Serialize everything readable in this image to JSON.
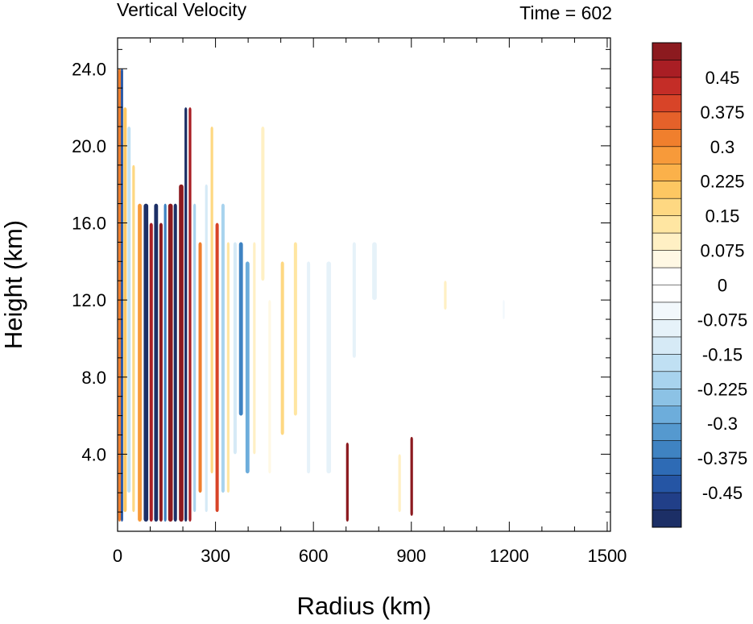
{
  "chart_data": {
    "type": "heatmap",
    "title": "Vertical Velocity",
    "subtitle": "Time = 602",
    "xlabel": "Radius (km)",
    "ylabel": "Height (km)",
    "xlim": [
      0,
      1510
    ],
    "ylim": [
      0,
      25.6
    ],
    "xticks": [
      {
        "value": 0,
        "label": "0"
      },
      {
        "value": 300,
        "label": "300"
      },
      {
        "value": 600,
        "label": "600"
      },
      {
        "value": 900,
        "label": "900"
      },
      {
        "value": 1200,
        "label": "1200"
      },
      {
        "value": 1500,
        "label": "1500"
      }
    ],
    "yticks": [
      {
        "value": 4,
        "label": "4.0"
      },
      {
        "value": 8,
        "label": "8.0"
      },
      {
        "value": 12,
        "label": "12.0"
      },
      {
        "value": 16,
        "label": "16.0"
      },
      {
        "value": 20,
        "label": "20.0"
      },
      {
        "value": 24,
        "label": "24.0"
      }
    ],
    "colorbar": {
      "min": -0.525,
      "max": 0.525,
      "step": 0.0375,
      "labels": [
        {
          "value": 0.45,
          "label": "0.45"
        },
        {
          "value": 0.375,
          "label": "0.375"
        },
        {
          "value": 0.3,
          "label": "0.3"
        },
        {
          "value": 0.225,
          "label": "0.225"
        },
        {
          "value": 0.15,
          "label": "0.15"
        },
        {
          "value": 0.075,
          "label": "0.075"
        },
        {
          "value": 0,
          "label": "0"
        },
        {
          "value": -0.075,
          "label": "-0.075"
        },
        {
          "value": -0.15,
          "label": "-0.15"
        },
        {
          "value": -0.225,
          "label": "-0.225"
        },
        {
          "value": -0.3,
          "label": "-0.3"
        },
        {
          "value": -0.375,
          "label": "-0.375"
        },
        {
          "value": -0.45,
          "label": "-0.45"
        }
      ],
      "colors": [
        "#1c2f66",
        "#213f88",
        "#2555a4",
        "#2e6bb5",
        "#3f83c2",
        "#5599cf",
        "#6daddb",
        "#8cc2e5",
        "#a8d3ee",
        "#c0e0f3",
        "#d6eaf6",
        "#e6f2f9",
        "#f2f8fc",
        "#ffffff",
        "#ffffff",
        "#fff8e4",
        "#fff0c4",
        "#ffe6a2",
        "#fed882",
        "#fdc762",
        "#fbb14a",
        "#f79a3a",
        "#f07f2d",
        "#e5612a",
        "#d84428",
        "#c42d27",
        "#a91e24",
        "#8c1a1f"
      ]
    },
    "bands": [
      {
        "x": 2,
        "w": 8,
        "z0": 0.5,
        "z1": 24,
        "v": 0.32
      },
      {
        "x": 10,
        "w": 7,
        "z0": 0.5,
        "z1": 24,
        "v": -0.42
      },
      {
        "x": 18,
        "w": 10,
        "z0": 1,
        "z1": 22,
        "v": 0.22
      },
      {
        "x": 30,
        "w": 10,
        "z0": 2,
        "z1": 21,
        "v": -0.18
      },
      {
        "x": 45,
        "w": 8,
        "z0": 1,
        "z1": 19,
        "v": 0.15
      },
      {
        "x": 62,
        "w": 12,
        "z0": 0.5,
        "z1": 17,
        "v": 0.28
      },
      {
        "x": 80,
        "w": 14,
        "z0": 0.5,
        "z1": 17,
        "v": -0.5
      },
      {
        "x": 98,
        "w": 10,
        "z0": 0.5,
        "z1": 16,
        "v": 0.48
      },
      {
        "x": 112,
        "w": 12,
        "z0": 0.5,
        "z1": 17,
        "v": -0.5
      },
      {
        "x": 128,
        "w": 10,
        "z0": 0.5,
        "z1": 16,
        "v": 0.5
      },
      {
        "x": 142,
        "w": 8,
        "z0": 0.5,
        "z1": 17,
        "v": -0.35
      },
      {
        "x": 155,
        "w": 14,
        "z0": 0.5,
        "z1": 17,
        "v": 0.52
      },
      {
        "x": 172,
        "w": 10,
        "z0": 0.5,
        "z1": 17,
        "v": -0.52
      },
      {
        "x": 188,
        "w": 14,
        "z0": 0.5,
        "z1": 18,
        "v": 0.5
      },
      {
        "x": 205,
        "w": 8,
        "z0": 0.5,
        "z1": 22,
        "v": -0.5
      },
      {
        "x": 218,
        "w": 8,
        "z0": 0.5,
        "z1": 22,
        "v": 0.45
      },
      {
        "x": 232,
        "w": 8,
        "z0": 1,
        "z1": 17,
        "v": -0.2
      },
      {
        "x": 248,
        "w": 10,
        "z0": 2,
        "z1": 15,
        "v": 0.3
      },
      {
        "x": 268,
        "w": 8,
        "z0": 1,
        "z1": 18,
        "v": -0.15
      },
      {
        "x": 285,
        "w": 8,
        "z0": 3,
        "z1": 21,
        "v": 0.18
      },
      {
        "x": 300,
        "w": 10,
        "z0": 1,
        "z1": 16,
        "v": 0.38
      },
      {
        "x": 318,
        "w": 10,
        "z0": 2,
        "z1": 17,
        "v": -0.22
      },
      {
        "x": 335,
        "w": 8,
        "z0": 2,
        "z1": 15,
        "v": 0.14
      },
      {
        "x": 355,
        "w": 10,
        "z0": 4,
        "z1": 15,
        "v": -0.12
      },
      {
        "x": 372,
        "w": 12,
        "z0": 6,
        "z1": 15,
        "v": -0.34
      },
      {
        "x": 392,
        "w": 12,
        "z0": 3,
        "z1": 14,
        "v": -0.3
      },
      {
        "x": 415,
        "w": 8,
        "z0": 4,
        "z1": 15,
        "v": 0.1
      },
      {
        "x": 440,
        "w": 10,
        "z0": 13,
        "z1": 21,
        "v": 0.1
      },
      {
        "x": 462,
        "w": 8,
        "z0": 3,
        "z1": 12,
        "v": 0.06
      },
      {
        "x": 500,
        "w": 10,
        "z0": 5,
        "z1": 14,
        "v": 0.16
      },
      {
        "x": 540,
        "w": 10,
        "z0": 6,
        "z1": 15,
        "v": 0.12
      },
      {
        "x": 580,
        "w": 10,
        "z0": 3,
        "z1": 14,
        "v": -0.08
      },
      {
        "x": 640,
        "w": 14,
        "z0": 3,
        "z1": 14,
        "v": -0.09
      },
      {
        "x": 700,
        "w": 8,
        "z0": 0.5,
        "z1": 4.6,
        "v": 0.52
      },
      {
        "x": 720,
        "w": 10,
        "z0": 9,
        "z1": 15,
        "v": -0.08
      },
      {
        "x": 780,
        "w": 14,
        "z0": 12,
        "z1": 15,
        "v": -0.1
      },
      {
        "x": 860,
        "w": 8,
        "z0": 1,
        "z1": 4,
        "v": 0.1
      },
      {
        "x": 897,
        "w": 8,
        "z0": 0.8,
        "z1": 4.9,
        "v": 0.52
      },
      {
        "x": 1000,
        "w": 8,
        "z0": 11.5,
        "z1": 13,
        "v": 0.1
      },
      {
        "x": 1180,
        "w": 6,
        "z0": 11,
        "z1": 12,
        "v": -0.06
      }
    ]
  }
}
